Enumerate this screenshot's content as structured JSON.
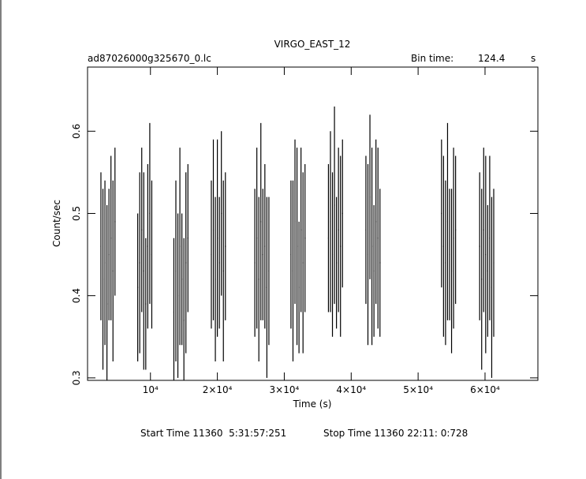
{
  "chart_data": {
    "type": "errorbar",
    "title": "VIRGO_EAST_12",
    "file": "ad87026000g325670_0.lc",
    "bin_time_label": "Bin time:",
    "bin_time": 124.4,
    "bin_time_unit": "s",
    "x_label": "Time (s)",
    "y_label": "Count/sec",
    "start_time": "Start Time 11360  5:31:57:251",
    "stop_time": "Stop Time 11360 22:11: 0:728",
    "xlim": [
      600,
      67900
    ],
    "ylim": [
      0.297,
      0.678
    ],
    "xticks": [
      {
        "value": 10000,
        "label": "10⁴"
      },
      {
        "value": 20000,
        "label": "2×10⁴"
      },
      {
        "value": 30000,
        "label": "3×10⁴"
      },
      {
        "value": 40000,
        "label": "4×10⁴"
      },
      {
        "value": 50000,
        "label": "5×10⁴"
      },
      {
        "value": 60000,
        "label": "6×10⁴"
      }
    ],
    "yticks": [
      0.3,
      0.4,
      0.5,
      0.6
    ],
    "color": "#000000",
    "x": [
      2600,
      2900,
      3200,
      3500,
      3800,
      4100,
      4400,
      4700,
      8100,
      8400,
      8700,
      9000,
      9300,
      9600,
      9900,
      10200,
      13500,
      13800,
      14100,
      14400,
      14700,
      15000,
      15300,
      15600,
      19100,
      19400,
      19700,
      20000,
      20300,
      20600,
      20900,
      21200,
      25600,
      25900,
      26200,
      26500,
      26800,
      27100,
      27400,
      27700,
      31000,
      31300,
      31600,
      31900,
      32200,
      32500,
      32800,
      33100,
      36600,
      36900,
      37200,
      37500,
      37800,
      38100,
      38400,
      38700,
      42200,
      42500,
      42800,
      43100,
      43400,
      43700,
      44000,
      44300,
      53500,
      53800,
      54100,
      54400,
      54700,
      55000,
      55300,
      55600,
      59200,
      59500,
      59800,
      60100,
      60400,
      60700,
      61000,
      61300
    ],
    "values": [
      0.46,
      0.42,
      0.44,
      0.39,
      0.45,
      0.47,
      0.43,
      0.49,
      0.41,
      0.44,
      0.48,
      0.43,
      0.39,
      0.46,
      0.5,
      0.45,
      0.38,
      0.43,
      0.4,
      0.46,
      0.42,
      0.37,
      0.44,
      0.47,
      0.45,
      0.48,
      0.42,
      0.47,
      0.44,
      0.5,
      0.43,
      0.46,
      0.44,
      0.47,
      0.42,
      0.49,
      0.45,
      0.46,
      0.41,
      0.43,
      0.45,
      0.43,
      0.49,
      0.46,
      0.41,
      0.48,
      0.44,
      0.47,
      0.47,
      0.49,
      0.45,
      0.51,
      0.44,
      0.48,
      0.46,
      0.5,
      0.48,
      0.45,
      0.52,
      0.46,
      0.43,
      0.49,
      0.47,
      0.44,
      0.5,
      0.46,
      0.44,
      0.49,
      0.45,
      0.43,
      0.47,
      0.48,
      0.46,
      0.42,
      0.48,
      0.45,
      0.43,
      0.47,
      0.41,
      0.44
    ],
    "errors": [
      0.09,
      0.11,
      0.1,
      0.12,
      0.08,
      0.1,
      0.11,
      0.09,
      0.09,
      0.11,
      0.1,
      0.12,
      0.08,
      0.1,
      0.11,
      0.09,
      0.09,
      0.11,
      0.1,
      0.12,
      0.08,
      0.1,
      0.11,
      0.09,
      0.09,
      0.11,
      0.1,
      0.12,
      0.08,
      0.1,
      0.11,
      0.09,
      0.09,
      0.11,
      0.1,
      0.12,
      0.08,
      0.1,
      0.11,
      0.09,
      0.09,
      0.11,
      0.1,
      0.12,
      0.08,
      0.1,
      0.11,
      0.09,
      0.09,
      0.11,
      0.1,
      0.12,
      0.08,
      0.1,
      0.11,
      0.09,
      0.09,
      0.11,
      0.1,
      0.12,
      0.08,
      0.1,
      0.11,
      0.09,
      0.09,
      0.11,
      0.1,
      0.12,
      0.08,
      0.1,
      0.11,
      0.09,
      0.09,
      0.11,
      0.1,
      0.12,
      0.08,
      0.1,
      0.11,
      0.09
    ]
  }
}
